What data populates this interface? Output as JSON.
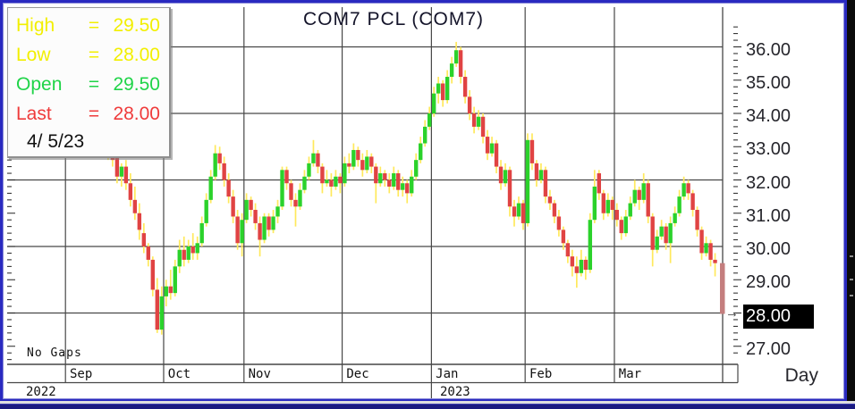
{
  "title": "COM7 PCL (COM7)",
  "footer_note": "No Gaps",
  "icons": {
    "last_price_arrow": "→"
  },
  "info_box": {
    "rows": [
      {
        "name": "high",
        "label": "High",
        "eq": "=",
        "value": "29.50",
        "color": "#f2ef00"
      },
      {
        "name": "low",
        "label": "Low",
        "eq": "=",
        "value": "28.00",
        "color": "#f2ef00"
      },
      {
        "name": "open",
        "label": "Open",
        "eq": "=",
        "value": "29.50",
        "color": "#1fd448"
      },
      {
        "name": "last",
        "label": "Last",
        "eq": "=",
        "value": "28.00",
        "color": "#ef3b3b"
      }
    ],
    "date": "4/ 5/23"
  },
  "y_axis": {
    "labels": [
      "36.00",
      "35.00",
      "34.00",
      "33.00",
      "32.00",
      "31.00",
      "30.00",
      "29.00",
      "28.00",
      "27.00"
    ],
    "values": [
      36,
      35,
      34,
      33,
      32,
      31,
      30,
      29,
      28,
      27
    ],
    "highlighted_label": "28.00",
    "highlight_bg": "#000000",
    "highlight_fg": "#ffffff",
    "unit_label": "Day"
  },
  "x_axis": {
    "months": [
      "Sep",
      "Oct",
      "Nov",
      "Dec",
      "Jan",
      "Feb",
      "Mar"
    ],
    "years": [
      {
        "label": "2022",
        "x": 26
      },
      {
        "label": "2023",
        "x": 489
      }
    ]
  },
  "colors": {
    "up": "#2bd22b",
    "down": "#e04343",
    "wick": "#ffe95c",
    "current": "#c47e7e",
    "grid": "#474747",
    "window_border": "#2a2ac0",
    "taskbar": "#1a1a80",
    "highlight_bg": "#000000",
    "highlight_fg": "#ffffff"
  },
  "chart_data": {
    "type": "candlestick",
    "title": "COM7 PCL (COM7)",
    "symbol": "COM7",
    "period": "Day",
    "date_range": "Sep 2022 - 4/5/23",
    "ylim": [
      26.4,
      37.2
    ],
    "gridline_values": [
      36,
      34,
      32,
      30,
      28
    ],
    "axis_tick_step": 0.2,
    "grid": true,
    "months": [
      "Sep",
      "Oct",
      "Nov",
      "Dec",
      "Jan",
      "Feb",
      "Mar"
    ],
    "month_start_indices": [
      0,
      22,
      40,
      62,
      82,
      103,
      123
    ],
    "current_day": {
      "date": "4/ 5/23",
      "open": 29.5,
      "high": 29.5,
      "low": 28.0,
      "last": 28.0
    },
    "ohlc": [
      [
        33.5,
        33.9,
        33.2,
        33.7
      ],
      [
        33.7,
        33.9,
        33.3,
        33.5
      ],
      [
        33.5,
        33.8,
        33.1,
        33.3
      ],
      [
        33.3,
        33.7,
        33.0,
        33.6
      ],
      [
        33.6,
        34.0,
        33.4,
        33.8
      ],
      [
        33.8,
        33.9,
        33.2,
        33.4
      ],
      [
        33.4,
        33.6,
        32.9,
        33.1
      ],
      [
        33.1,
        33.6,
        32.9,
        33.4
      ],
      [
        33.4,
        33.7,
        33.0,
        33.2
      ],
      [
        33.2,
        33.4,
        32.6,
        32.8
      ],
      [
        32.8,
        33.1,
        32.4,
        32.6
      ],
      [
        32.7,
        32.9,
        31.9,
        32.1
      ],
      [
        32.1,
        32.5,
        31.8,
        32.4
      ],
      [
        32.4,
        32.6,
        31.7,
        31.9
      ],
      [
        31.9,
        32.2,
        31.2,
        31.4
      ],
      [
        31.4,
        31.8,
        30.8,
        31.0
      ],
      [
        31.0,
        31.3,
        30.2,
        30.5
      ],
      [
        30.4,
        30.7,
        29.8,
        30.0
      ],
      [
        30.0,
        30.1,
        29.4,
        29.6
      ],
      [
        29.6,
        29.7,
        28.5,
        28.7
      ],
      [
        28.7,
        29.05,
        27.4,
        27.5
      ],
      [
        27.5,
        28.8,
        27.35,
        28.5
      ],
      [
        28.5,
        29.0,
        28.2,
        28.8
      ],
      [
        28.8,
        29.3,
        28.4,
        28.6
      ],
      [
        28.6,
        29.6,
        28.5,
        29.4
      ],
      [
        29.4,
        30.2,
        29.2,
        29.9
      ],
      [
        29.9,
        30.3,
        29.4,
        29.6
      ],
      [
        29.6,
        30.2,
        29.5,
        30.0
      ],
      [
        30.0,
        30.4,
        29.6,
        29.8
      ],
      [
        29.8,
        30.3,
        29.6,
        30.1
      ],
      [
        30.1,
        30.9,
        30.0,
        30.7
      ],
      [
        30.7,
        31.6,
        30.6,
        31.4
      ],
      [
        31.4,
        32.3,
        31.3,
        32.1
      ],
      [
        32.1,
        33.05,
        32.0,
        32.8
      ],
      [
        32.8,
        33.0,
        32.3,
        32.5
      ],
      [
        32.5,
        32.7,
        31.8,
        32.0
      ],
      [
        32.0,
        32.2,
        31.3,
        31.5
      ],
      [
        31.5,
        31.7,
        30.7,
        30.9
      ],
      [
        30.9,
        31.1,
        29.9,
        30.1
      ],
      [
        30.1,
        31.0,
        29.7,
        30.8
      ],
      [
        30.8,
        31.6,
        30.7,
        31.4
      ],
      [
        31.4,
        31.5,
        30.9,
        31.1
      ],
      [
        31.1,
        31.3,
        30.5,
        30.7
      ],
      [
        30.7,
        30.9,
        29.7,
        30.2
      ],
      [
        30.2,
        31.0,
        30.1,
        30.9
      ],
      [
        30.9,
        31.0,
        30.3,
        30.5
      ],
      [
        30.5,
        31.1,
        30.4,
        30.9
      ],
      [
        30.9,
        31.4,
        30.7,
        31.2
      ],
      [
        31.2,
        32.4,
        31.1,
        32.3
      ],
      [
        32.3,
        32.4,
        31.7,
        31.9
      ],
      [
        31.9,
        32.0,
        31.2,
        31.4
      ],
      [
        31.4,
        31.6,
        30.6,
        31.2
      ],
      [
        31.2,
        31.9,
        31.1,
        31.7
      ],
      [
        31.7,
        32.3,
        31.6,
        32.1
      ],
      [
        32.1,
        32.7,
        32.0,
        32.5
      ],
      [
        32.5,
        33.2,
        32.4,
        32.8
      ],
      [
        32.8,
        32.9,
        32.2,
        32.4
      ],
      [
        32.4,
        32.5,
        31.6,
        31.9
      ],
      [
        31.9,
        32.3,
        31.8,
        32.0
      ],
      [
        32.0,
        32.2,
        31.5,
        31.8
      ],
      [
        31.8,
        32.3,
        31.7,
        32.1
      ],
      [
        32.1,
        32.2,
        31.6,
        31.9
      ],
      [
        31.9,
        32.7,
        31.8,
        32.5
      ],
      [
        32.5,
        32.8,
        32.2,
        32.4
      ],
      [
        32.4,
        33.1,
        32.3,
        32.9
      ],
      [
        32.9,
        33.0,
        32.4,
        32.6
      ],
      [
        32.6,
        32.8,
        32.1,
        32.3
      ],
      [
        32.3,
        32.9,
        32.2,
        32.7
      ],
      [
        32.7,
        32.8,
        32.2,
        32.4
      ],
      [
        32.4,
        32.5,
        31.3,
        31.9
      ],
      [
        31.9,
        32.4,
        31.8,
        32.2
      ],
      [
        32.2,
        32.3,
        31.8,
        32.0
      ],
      [
        32.0,
        32.2,
        31.6,
        31.8
      ],
      [
        31.8,
        32.4,
        31.7,
        32.2
      ],
      [
        32.2,
        32.3,
        31.5,
        31.7
      ],
      [
        31.7,
        32.1,
        31.5,
        31.9
      ],
      [
        31.9,
        32.0,
        31.3,
        31.6
      ],
      [
        31.6,
        32.3,
        31.5,
        32.1
      ],
      [
        32.1,
        32.8,
        32.0,
        32.6
      ],
      [
        32.6,
        33.3,
        32.5,
        33.1
      ],
      [
        33.1,
        33.8,
        33.0,
        33.6
      ],
      [
        33.6,
        34.2,
        33.5,
        34.0
      ],
      [
        34.0,
        34.8,
        33.9,
        34.6
      ],
      [
        34.6,
        35.1,
        34.3,
        34.9
      ],
      [
        34.9,
        35.0,
        34.2,
        34.4
      ],
      [
        34.4,
        35.3,
        34.3,
        35.1
      ],
      [
        35.1,
        35.7,
        34.9,
        35.5
      ],
      [
        35.5,
        36.15,
        35.4,
        35.9
      ],
      [
        35.9,
        36.0,
        34.9,
        35.1
      ],
      [
        35.1,
        35.3,
        34.3,
        34.5
      ],
      [
        34.5,
        34.7,
        33.8,
        34.0
      ],
      [
        34.0,
        34.2,
        33.4,
        33.6
      ],
      [
        33.6,
        34.1,
        33.5,
        33.9
      ],
      [
        33.9,
        34.0,
        33.1,
        33.3
      ],
      [
        33.3,
        33.5,
        32.6,
        32.8
      ],
      [
        32.8,
        33.3,
        32.7,
        33.1
      ],
      [
        33.1,
        33.2,
        32.2,
        32.4
      ],
      [
        32.4,
        32.6,
        31.7,
        31.9
      ],
      [
        31.9,
        32.5,
        31.8,
        32.3
      ],
      [
        32.3,
        32.4,
        30.9,
        31.2
      ],
      [
        31.2,
        31.4,
        30.6,
        30.9
      ],
      [
        30.9,
        31.5,
        30.8,
        31.3
      ],
      [
        31.3,
        31.4,
        30.5,
        30.7
      ],
      [
        30.7,
        33.4,
        30.6,
        33.2
      ],
      [
        33.2,
        33.4,
        32.3,
        32.5
      ],
      [
        32.5,
        32.6,
        31.8,
        32.0
      ],
      [
        32.0,
        32.5,
        31.9,
        32.3
      ],
      [
        32.3,
        32.4,
        31.3,
        31.5
      ],
      [
        31.5,
        31.7,
        31.1,
        31.3
      ],
      [
        31.3,
        31.4,
        30.7,
        30.9
      ],
      [
        30.9,
        31.1,
        30.3,
        30.5
      ],
      [
        30.5,
        30.6,
        29.9,
        30.1
      ],
      [
        30.1,
        30.2,
        29.5,
        29.7
      ],
      [
        29.7,
        29.9,
        29.1,
        29.4
      ],
      [
        29.4,
        29.7,
        28.76,
        29.2
      ],
      [
        29.2,
        29.9,
        29.1,
        29.6
      ],
      [
        29.6,
        29.7,
        29.0,
        29.3
      ],
      [
        29.3,
        31.0,
        29.2,
        30.8
      ],
      [
        30.8,
        32.3,
        30.7,
        31.8
      ],
      [
        32.2,
        32.3,
        31.4,
        31.6
      ],
      [
        31.6,
        31.7,
        30.8,
        31.0
      ],
      [
        31.0,
        31.6,
        30.9,
        31.4
      ],
      [
        31.4,
        31.5,
        30.8,
        31.1
      ],
      [
        31.1,
        31.3,
        30.6,
        30.8
      ],
      [
        30.8,
        30.9,
        30.2,
        30.4
      ],
      [
        30.4,
        31.1,
        30.3,
        30.9
      ],
      [
        30.9,
        31.5,
        30.8,
        31.3
      ],
      [
        31.3,
        32.0,
        31.2,
        31.7
      ],
      [
        31.7,
        31.8,
        31.1,
        31.4
      ],
      [
        31.4,
        32.2,
        31.3,
        31.9
      ],
      [
        31.9,
        32.0,
        30.7,
        30.9
      ],
      [
        30.9,
        31.0,
        29.4,
        29.9
      ],
      [
        29.9,
        30.5,
        29.8,
        30.3
      ],
      [
        30.3,
        30.8,
        30.2,
        30.6
      ],
      [
        30.6,
        30.7,
        29.9,
        30.1
      ],
      [
        30.1,
        30.9,
        29.5,
        30.7
      ],
      [
        30.7,
        31.2,
        30.6,
        31.0
      ],
      [
        31.0,
        31.7,
        30.9,
        31.5
      ],
      [
        31.5,
        32.1,
        31.4,
        31.9
      ],
      [
        31.9,
        32.0,
        31.4,
        31.6
      ],
      [
        31.6,
        31.7,
        30.9,
        31.1
      ],
      [
        31.1,
        31.2,
        30.3,
        30.5
      ],
      [
        30.5,
        30.6,
        29.6,
        29.8
      ],
      [
        29.8,
        30.3,
        29.7,
        30.1
      ],
      [
        30.1,
        30.2,
        29.4,
        29.6
      ],
      [
        29.6,
        29.8,
        29.1,
        29.5
      ],
      [
        29.5,
        29.5,
        28.0,
        28.0
      ]
    ]
  }
}
